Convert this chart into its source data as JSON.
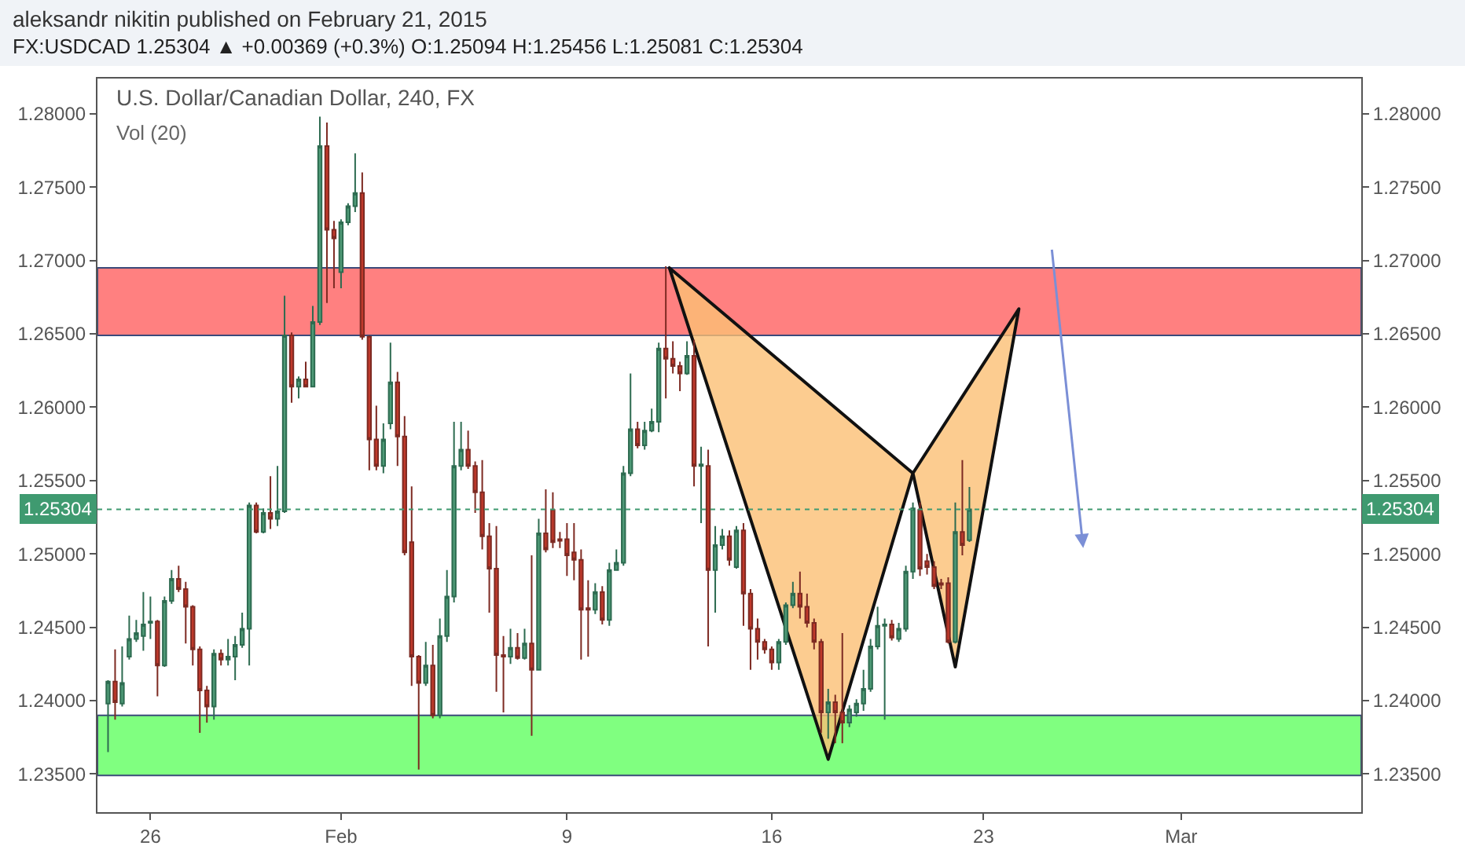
{
  "chart_data": {
    "type": "candlestick",
    "title": "aleksandr nikitin published on February 21, 2015",
    "subtitle": "FX:USDCAD 1.25304 ▲ +0.00369 (+0.3%) O:1.25094 H:1.25456 L:1.25081 C:1.25304",
    "annotations": [
      "U.S. Dollar/Canadian Dollar, 240, FX",
      "Vol (20)"
    ],
    "categories": [
      null,
      null,
      null,
      null,
      null,
      null,
      null,
      "26",
      null,
      null,
      null,
      null,
      null,
      null,
      null,
      null,
      null,
      null,
      null,
      null,
      null,
      null,
      null,
      null,
      null,
      null,
      null,
      null,
      null,
      null,
      null,
      null,
      null,
      null,
      "Feb",
      null,
      null,
      null,
      null,
      null,
      null,
      null,
      null,
      null,
      null,
      null,
      null,
      null,
      null,
      null,
      null,
      null,
      null,
      null,
      null,
      null,
      null,
      null,
      null,
      null,
      null,
      null,
      null,
      null,
      null,
      null,
      "9",
      null,
      null,
      null,
      null,
      null,
      null,
      null,
      null,
      null,
      null,
      null,
      null,
      null,
      null,
      null,
      null,
      null,
      null,
      null,
      null,
      null,
      null,
      null,
      null,
      null,
      null,
      null,
      null,
      "16",
      null,
      null,
      null,
      null,
      null,
      null,
      null,
      null,
      null,
      null,
      null,
      null,
      null,
      null,
      null,
      null,
      null,
      null,
      null,
      null,
      null,
      null,
      null,
      null,
      null,
      null,
      null,
      null,
      null,
      "23",
      null,
      null,
      null,
      null,
      null,
      null,
      null,
      null,
      null,
      null,
      null,
      null,
      null,
      null,
      null,
      null,
      null,
      null,
      null,
      null,
      null,
      null,
      null,
      null,
      null,
      null,
      null,
      "Mar",
      null,
      null,
      null,
      null,
      null,
      null,
      null,
      null,
      null,
      null,
      null,
      null,
      null,
      null,
      null,
      null,
      null,
      null,
      null,
      null,
      null,
      null,
      null,
      null,
      null
    ],
    "ylim": [
      1.2324,
      1.2824
    ],
    "yticks": [
      {
        "value": 1.235,
        "label": "1.23500"
      },
      {
        "value": 1.24,
        "label": "1.24000"
      },
      {
        "value": 1.245,
        "label": "1.24500"
      },
      {
        "value": 1.25,
        "label": "1.25000"
      },
      {
        "value": 1.255,
        "label": "1.25500"
      },
      {
        "value": 1.26,
        "label": "1.26000"
      },
      {
        "value": 1.265,
        "label": "1.26500"
      },
      {
        "value": 1.27,
        "label": "1.27000"
      },
      {
        "value": 1.275,
        "label": "1.27500"
      },
      {
        "value": 1.28,
        "label": "1.28000"
      }
    ],
    "y2lim": [
      1.2324,
      1.2824
    ],
    "y2ticks": [
      {
        "value": 1.235,
        "label": "1.23500"
      },
      {
        "value": 1.24,
        "label": "1.24000"
      },
      {
        "value": 1.245,
        "label": "1.24500"
      },
      {
        "value": 1.25,
        "label": "1.25000"
      },
      {
        "value": 1.255,
        "label": "1.25500"
      },
      {
        "value": 1.26,
        "label": "1.26000"
      },
      {
        "value": 1.265,
        "label": "1.26500"
      },
      {
        "value": 1.27,
        "label": "1.27000"
      },
      {
        "value": 1.275,
        "label": "1.27500"
      },
      {
        "value": 1.28,
        "label": "1.28000"
      }
    ],
    "bands": [
      {
        "axis": "y",
        "from": 1.2649,
        "to": 1.2695,
        "color": "#ff8080"
      },
      {
        "axis": "y",
        "from": 1.2349,
        "to": 1.239,
        "color": "#80ff80"
      }
    ],
    "ref_lines": [
      {
        "axis": "y",
        "value": 1.25304,
        "label": "1.25304",
        "color": "#3f9a70",
        "line_style": "dotted"
      }
    ],
    "ohlc": [
      null,
      [
        1.2398,
        1.2414,
        1.2365,
        1.2413
      ],
      [
        1.2413,
        1.2435,
        1.2387,
        1.2399
      ],
      [
        1.2398,
        1.2437,
        1.2396,
        1.2412
      ],
      [
        1.243,
        1.2458,
        1.2428,
        1.2442
      ],
      [
        1.2442,
        1.2455,
        1.244,
        1.2446
      ],
      [
        1.2444,
        1.2474,
        1.2434,
        1.2452
      ],
      [
        1.2453,
        1.2471,
        1.2442,
        1.2454
      ],
      [
        1.2454,
        1.2455,
        1.2403,
        1.2424
      ],
      [
        1.2424,
        1.2471,
        1.2423,
        1.2468
      ],
      [
        1.2468,
        1.2489,
        1.2466,
        1.2483
      ],
      [
        1.2483,
        1.2492,
        1.2474,
        1.2476
      ],
      [
        1.2476,
        1.2481,
        1.2439,
        1.2464
      ],
      [
        1.2464,
        1.2465,
        1.2424,
        1.2435
      ],
      [
        1.2435,
        1.2437,
        1.2378,
        1.2407
      ],
      [
        1.2407,
        1.241,
        1.2385,
        1.2396
      ],
      [
        1.2396,
        1.2435,
        1.2387,
        1.2432
      ],
      [
        1.2432,
        1.2435,
        1.2424,
        1.2428
      ],
      [
        1.2428,
        1.2442,
        1.2424,
        1.243
      ],
      [
        1.243,
        1.2444,
        1.2414,
        1.2438
      ],
      [
        1.2438,
        1.246,
        1.2436,
        1.2449
      ],
      [
        1.2449,
        1.2535,
        1.2424,
        1.2533
      ],
      [
        1.2533,
        1.2535,
        1.2514,
        1.2515
      ],
      [
        1.2515,
        1.2531,
        1.2514,
        1.2528
      ],
      [
        1.2528,
        1.2553,
        1.2517,
        1.2524
      ],
      [
        1.2524,
        1.256,
        1.2519,
        1.2529
      ],
      [
        1.2529,
        1.2676,
        1.2528,
        1.2649
      ],
      [
        1.2649,
        1.2651,
        1.2603,
        1.2614
      ],
      [
        1.2614,
        1.2621,
        1.2606,
        1.2619
      ],
      [
        1.2619,
        1.2631,
        1.2614,
        1.2614
      ],
      [
        1.2614,
        1.2669,
        1.2614,
        1.2658
      ],
      [
        1.2658,
        1.2798,
        1.2656,
        1.2778
      ],
      [
        1.2778,
        1.2794,
        1.2671,
        1.2721
      ],
      [
        1.2721,
        1.2727,
        1.2681,
        1.2715
      ],
      [
        1.2692,
        1.2728,
        1.2681,
        1.2726
      ],
      [
        1.2726,
        1.2739,
        1.2724,
        1.2737
      ],
      [
        1.2737,
        1.2773,
        1.2733,
        1.2746
      ],
      [
        1.2746,
        1.276,
        1.2646,
        1.2648
      ],
      [
        1.2648,
        1.2649,
        1.2557,
        1.2578
      ],
      [
        1.2578,
        1.2601,
        1.2557,
        1.256
      ],
      [
        1.256,
        1.2589,
        1.2555,
        1.2578
      ],
      [
        1.2589,
        1.2644,
        1.2585,
        1.2617
      ],
      [
        1.2617,
        1.2624,
        1.256,
        1.258
      ],
      [
        1.258,
        1.2594,
        1.2499,
        1.2501
      ],
      [
        1.2508,
        1.2546,
        1.241,
        1.243
      ],
      [
        1.243,
        1.2431,
        1.2353,
        1.2412
      ],
      [
        1.2412,
        1.244,
        1.241,
        1.2424
      ],
      [
        1.2424,
        1.2438,
        1.2388,
        1.239
      ],
      [
        1.239,
        1.2456,
        1.2388,
        1.2444
      ],
      [
        1.2444,
        1.2489,
        1.244,
        1.2471
      ],
      [
        1.2471,
        1.259,
        1.2467,
        1.256
      ],
      [
        1.256,
        1.259,
        1.2557,
        1.2571
      ],
      [
        1.2571,
        1.2584,
        1.2558,
        1.256
      ],
      [
        1.256,
        1.2563,
        1.2528,
        1.2542
      ],
      [
        1.2542,
        1.2564,
        1.2503,
        1.2512
      ],
      [
        1.2512,
        1.2521,
        1.246,
        1.249
      ],
      [
        1.249,
        1.2519,
        1.2406,
        1.2431
      ],
      [
        1.2431,
        1.2444,
        1.2392,
        1.243
      ],
      [
        1.243,
        1.2449,
        1.2425,
        1.2436
      ],
      [
        1.2436,
        1.2446,
        1.2428,
        1.2429
      ],
      [
        1.2429,
        1.2449,
        1.2428,
        1.2439
      ],
      [
        1.2439,
        1.2499,
        1.2376,
        1.2421
      ],
      [
        1.2421,
        1.2524,
        1.2421,
        1.2514
      ],
      [
        1.2514,
        1.2544,
        1.2501,
        1.2503
      ],
      [
        1.253,
        1.2542,
        1.2504,
        1.2508
      ],
      [
        1.251,
        1.2515,
        1.2504,
        1.2509
      ],
      [
        1.251,
        1.2521,
        1.2485,
        1.2499
      ],
      [
        1.2501,
        1.2521,
        1.2482,
        1.2496
      ],
      [
        1.2496,
        1.2503,
        1.2428,
        1.2462
      ],
      [
        1.2463,
        1.2482,
        1.243,
        1.2462
      ],
      [
        1.2462,
        1.248,
        1.2459,
        1.2474
      ],
      [
        1.2474,
        1.2478,
        1.2452,
        1.2455
      ],
      [
        1.2455,
        1.2494,
        1.2451,
        1.2489
      ],
      [
        1.2489,
        1.2503,
        1.2489,
        1.2494
      ],
      [
        1.2494,
        1.256,
        1.2492,
        1.2555
      ],
      [
        1.2555,
        1.2623,
        1.2553,
        1.2585
      ],
      [
        1.2585,
        1.259,
        1.2572,
        1.2574
      ],
      [
        1.2574,
        1.259,
        1.2571,
        1.2584
      ],
      [
        1.2584,
        1.2599,
        1.2583,
        1.259
      ],
      [
        1.259,
        1.2644,
        1.2583,
        1.264
      ],
      [
        1.264,
        1.2696,
        1.2606,
        1.2633
      ],
      [
        1.2633,
        1.2645,
        1.2623,
        1.2628
      ],
      [
        1.2628,
        1.2631,
        1.2611,
        1.2623
      ],
      [
        1.2623,
        1.2645,
        1.2622,
        1.2635
      ],
      [
        1.2635,
        1.2646,
        1.2546,
        1.256
      ],
      [
        1.256,
        1.2573,
        1.2521,
        1.2561
      ],
      [
        1.256,
        1.2571,
        1.2437,
        1.2489
      ],
      [
        1.2489,
        1.2519,
        1.246,
        1.2506
      ],
      [
        1.2506,
        1.2517,
        1.2503,
        1.2512
      ],
      [
        1.2512,
        1.2516,
        1.2492,
        1.2496
      ],
      [
        1.2491,
        1.2519,
        1.249,
        1.2516
      ],
      [
        1.2516,
        1.2521,
        1.2451,
        1.2473
      ],
      [
        1.2473,
        1.2476,
        1.2421,
        1.2449
      ],
      [
        1.2449,
        1.2456,
        1.2428,
        1.244
      ],
      [
        1.244,
        1.2442,
        1.2432,
        1.2435
      ],
      [
        1.2435,
        1.2437,
        1.2421,
        1.2426
      ],
      [
        1.2426,
        1.2442,
        1.2421,
        1.244
      ],
      [
        1.244,
        1.2467,
        1.2438,
        1.2465
      ],
      [
        1.2465,
        1.2481,
        1.2463,
        1.2473
      ],
      [
        1.2473,
        1.2488,
        1.2456,
        1.2464
      ],
      [
        1.2464,
        1.2473,
        1.245,
        1.2453
      ],
      [
        1.2453,
        1.2456,
        1.2435,
        1.244
      ],
      [
        1.244,
        1.2442,
        1.2378,
        1.2392
      ],
      [
        1.2392,
        1.2408,
        1.2374,
        1.2399
      ],
      [
        1.2399,
        1.2404,
        1.2371,
        1.2392
      ],
      [
        1.2392,
        1.2446,
        1.2371,
        1.2385
      ],
      [
        1.2385,
        1.2397,
        1.2382,
        1.2394
      ],
      [
        1.2392,
        1.2401,
        1.2389,
        1.2398
      ],
      [
        1.2398,
        1.2421,
        1.2393,
        1.2408
      ],
      [
        1.2408,
        1.2442,
        1.2406,
        1.2437
      ],
      [
        1.2437,
        1.2464,
        1.2435,
        1.2451
      ],
      [
        1.2451,
        1.2456,
        1.2387,
        1.2452
      ],
      [
        1.2452,
        1.2455,
        1.2441,
        1.2443
      ],
      [
        1.2442,
        1.2453,
        1.244,
        1.2449
      ],
      [
        1.2449,
        1.2492,
        1.2447,
        1.2488
      ],
      [
        1.2488,
        1.2535,
        1.2483,
        1.2531
      ],
      [
        1.253,
        1.2535,
        1.2485,
        1.249
      ],
      [
        1.2495,
        1.25,
        1.2486,
        1.2491
      ],
      [
        1.2491,
        1.2495,
        1.2476,
        1.2478
      ],
      [
        1.248,
        1.2483,
        1.2476,
        1.2479
      ],
      [
        1.248,
        1.2484,
        1.2439,
        1.244
      ],
      [
        1.244,
        1.2535,
        1.2439,
        1.2515
      ],
      [
        1.2515,
        1.2564,
        1.2499,
        1.2506
      ],
      [
        1.25094,
        1.25456,
        1.25081,
        1.25304
      ],
      null,
      null,
      null,
      null,
      null,
      null,
      null,
      null,
      null,
      null,
      null,
      null,
      null,
      null,
      null,
      null,
      null,
      null,
      null,
      null,
      null,
      null,
      null,
      null,
      null,
      null,
      null,
      null,
      null,
      null,
      null,
      null,
      null,
      null,
      null,
      null,
      null,
      null,
      null,
      null,
      null,
      null,
      null,
      null,
      null,
      null,
      null,
      null,
      null,
      null,
      null,
      null,
      null,
      null,
      null
    ]
  }
}
